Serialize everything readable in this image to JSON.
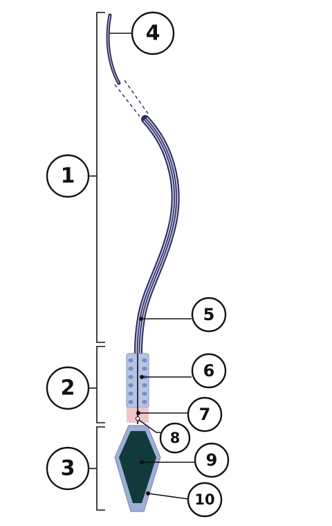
{
  "colors": {
    "tail_outer": "#2b2a5c",
    "tail_inner": "#c9c9e6",
    "midpiece_fill": "#b7c4e0",
    "mitochondria": "#6f8fc8",
    "neck": "#f2c4c8",
    "head_outer": "#9eaed4",
    "nucleus": "#123a3d",
    "outline": "#111111"
  },
  "labels": {
    "l1": "1",
    "l2": "2",
    "l3": "3",
    "l4": "4",
    "l5": "5",
    "l6": "6",
    "l7": "7",
    "l8": "8",
    "l9": "9",
    "l10": "10"
  }
}
